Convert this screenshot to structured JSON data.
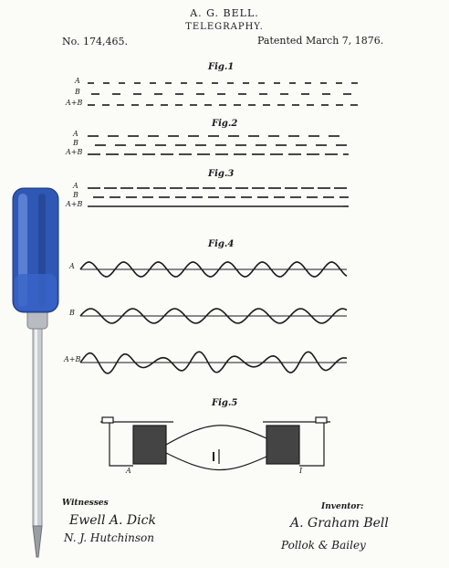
{
  "header": {
    "inventor_name": "A. G. BELL.",
    "title": "TELEGRAPHY.",
    "patent_no": "No. 174,465.",
    "patented": "Patented March 7, 1876."
  },
  "figures": {
    "fig1": {
      "label": "Fig.1",
      "rows": [
        "A",
        "B",
        "A+B"
      ]
    },
    "fig2": {
      "label": "Fig.2",
      "rows": [
        "A",
        "B",
        "A+B"
      ]
    },
    "fig3": {
      "label": "Fig.3",
      "rows": [
        "A",
        "B",
        "A+B"
      ]
    },
    "fig4": {
      "label": "Fig.4",
      "rows": [
        "A",
        "B",
        "A+B"
      ]
    },
    "fig5": {
      "label": "Fig.5",
      "parts": [
        "A",
        "I"
      ]
    }
  },
  "footer": {
    "witnesses_label": "Witnesses",
    "witness1": "Ewell A. Dick",
    "witness2": "N. J. Hutchinson",
    "inventor_label": "Inventor:",
    "inventor_signature": "A. Graham Bell",
    "attorney_signature": "Pollok & Bailey"
  },
  "overlay_object": {
    "icon": "screwdriver-icon",
    "handle_color": "#2f57b4"
  }
}
